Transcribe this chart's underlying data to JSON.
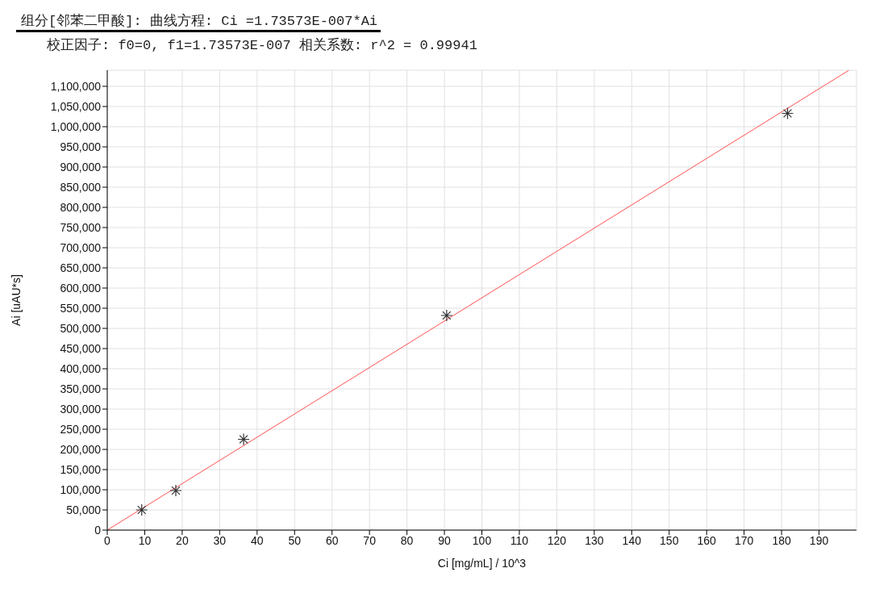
{
  "chart_data": {
    "type": "scatter",
    "title": "组分[邻苯二甲酸]:  曲线方程: Ci =1.73573E-007*Ai",
    "subtitle": "校正因子: f0=0, f1=1.73573E-007  相关系数: r^2 = 0.99941",
    "xlabel": "Ci [mg/mL] / 10^3",
    "ylabel": "Ai [uAU*s]",
    "x": [
      9.2,
      18.3,
      36.4,
      90.6,
      181.6
    ],
    "series": [
      {
        "color": "#333333",
        "marker": "cross",
        "values": [
          50000,
          98000,
          225000,
          532000,
          1033000
        ]
      },
      {
        "type": "line",
        "color": "#ff5050",
        "marker": "none",
        "line_style": "solid",
        "x": [
          0,
          198
        ],
        "values": [
          0,
          1140000
        ]
      }
    ],
    "xlim": [
      0,
      200
    ],
    "xticks": [
      0,
      10,
      20,
      30,
      40,
      50,
      60,
      70,
      80,
      90,
      100,
      110,
      120,
      130,
      140,
      150,
      160,
      170,
      180,
      190
    ],
    "ylim": [
      0,
      1140000
    ],
    "yticks": [
      0,
      {
        "value": 50000,
        "label": "50,000"
      },
      {
        "value": 100000,
        "label": "100,000"
      },
      {
        "value": 150000,
        "label": "150,000"
      },
      {
        "value": 200000,
        "label": "200,000"
      },
      {
        "value": 250000,
        "label": "250,000"
      },
      {
        "value": 300000,
        "label": "300,000"
      },
      {
        "value": 350000,
        "label": "350,000"
      },
      {
        "value": 400000,
        "label": "400,000"
      },
      {
        "value": 450000,
        "label": "450,000"
      },
      {
        "value": 500000,
        "label": "500,000"
      },
      {
        "value": 550000,
        "label": "550,000"
      },
      {
        "value": 600000,
        "label": "600,000"
      },
      {
        "value": 650000,
        "label": "650,000"
      },
      {
        "value": 700000,
        "label": "700,000"
      },
      {
        "value": 750000,
        "label": "750,000"
      },
      {
        "value": 800000,
        "label": "800,000"
      },
      {
        "value": 850000,
        "label": "850,000"
      },
      {
        "value": 900000,
        "label": "900,000"
      },
      {
        "value": 950000,
        "label": "950,000"
      },
      {
        "value": 1000000,
        "label": "1,000,000"
      },
      {
        "value": 1050000,
        "label": "1,050,000"
      },
      {
        "value": 1100000,
        "label": "1,100,000"
      }
    ],
    "grid": true,
    "legend": false
  }
}
